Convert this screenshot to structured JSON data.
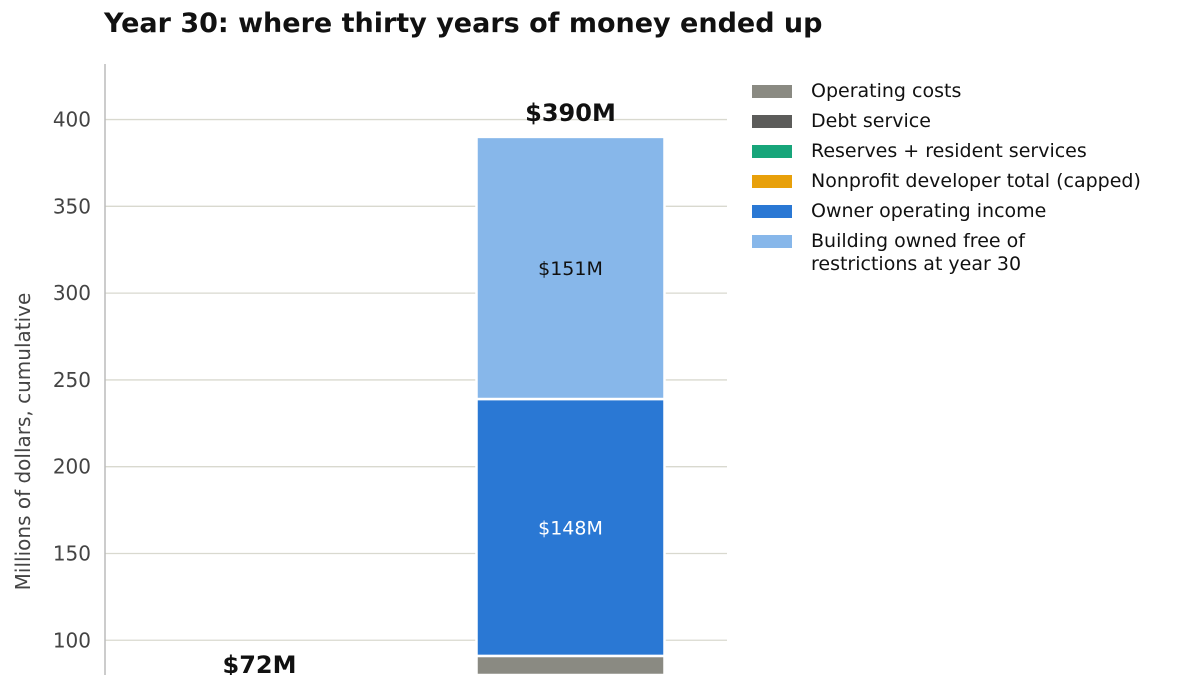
{
  "chart_data": {
    "type": "bar",
    "stacked": true,
    "title": "Year 30: where thirty years of money ended up",
    "ylabel": "Millions of dollars, cumulative",
    "xlabel": "",
    "ylim": [
      80,
      432
    ],
    "yticks": [
      100,
      150,
      200,
      250,
      300,
      350,
      400
    ],
    "grid": true,
    "legend_position": "right",
    "legend": [
      {
        "name": "Operating costs",
        "color": "#8a8a82"
      },
      {
        "name": "Debt service",
        "color": "#5c5c5a"
      },
      {
        "name": "Reserves + resident services",
        "color": "#17a57a"
      },
      {
        "name": "Nonprofit developer total (capped)",
        "color": "#e8a00a"
      },
      {
        "name": "Owner operating income",
        "color": "#2a78d4"
      },
      {
        "name": "Building owned free of\nrestrictions at year 30",
        "color": "#87b7ea"
      }
    ],
    "bars": [
      {
        "total_label": "$72M",
        "total": 72,
        "segments": []
      },
      {
        "total_label": "$390M",
        "total": 390,
        "segments": [
          {
            "series": "Operating costs",
            "start": 0,
            "end": 91,
            "label": ""
          },
          {
            "series": "Owner operating income",
            "start": 91,
            "end": 239,
            "label": "$148M",
            "label_color": "#ffffff"
          },
          {
            "series": "Building owned free of\nrestrictions at year 30",
            "start": 239,
            "end": 390,
            "label": "$151M",
            "label_color": "#111111"
          }
        ]
      }
    ]
  }
}
